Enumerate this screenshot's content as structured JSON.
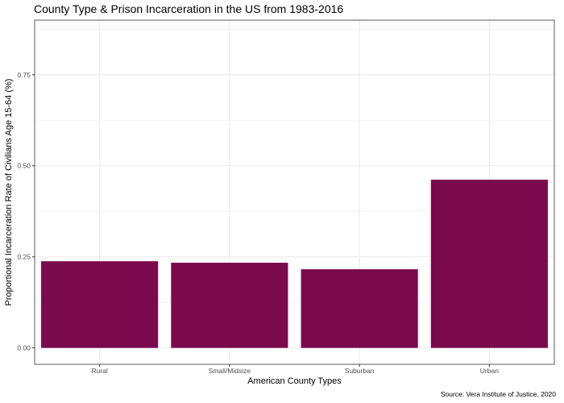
{
  "chart_data": {
    "type": "bar",
    "title": "County Type & Prison Incarceration in the US from 1983-2016",
    "xlabel": "American County Types",
    "ylabel": "Proportional Incarceration Rate of Civilians Age 15-64 (%)",
    "caption": "Source: Vera Institute of Justice, 2020",
    "categories": [
      "Rural",
      "Small/Midsize",
      "Suburban",
      "Urban"
    ],
    "values": [
      0.238,
      0.234,
      0.216,
      0.462
    ],
    "ylim": [
      -0.045,
      0.9
    ],
    "yticks": [
      "0.00",
      "0.25",
      "0.50",
      "0.75"
    ],
    "ytick_values": [
      0,
      0.25,
      0.5,
      0.75
    ],
    "grid": true,
    "bar_color": "#7a0a4c",
    "grid_color": "#ebebeb",
    "panel_border_color": "#333333"
  }
}
